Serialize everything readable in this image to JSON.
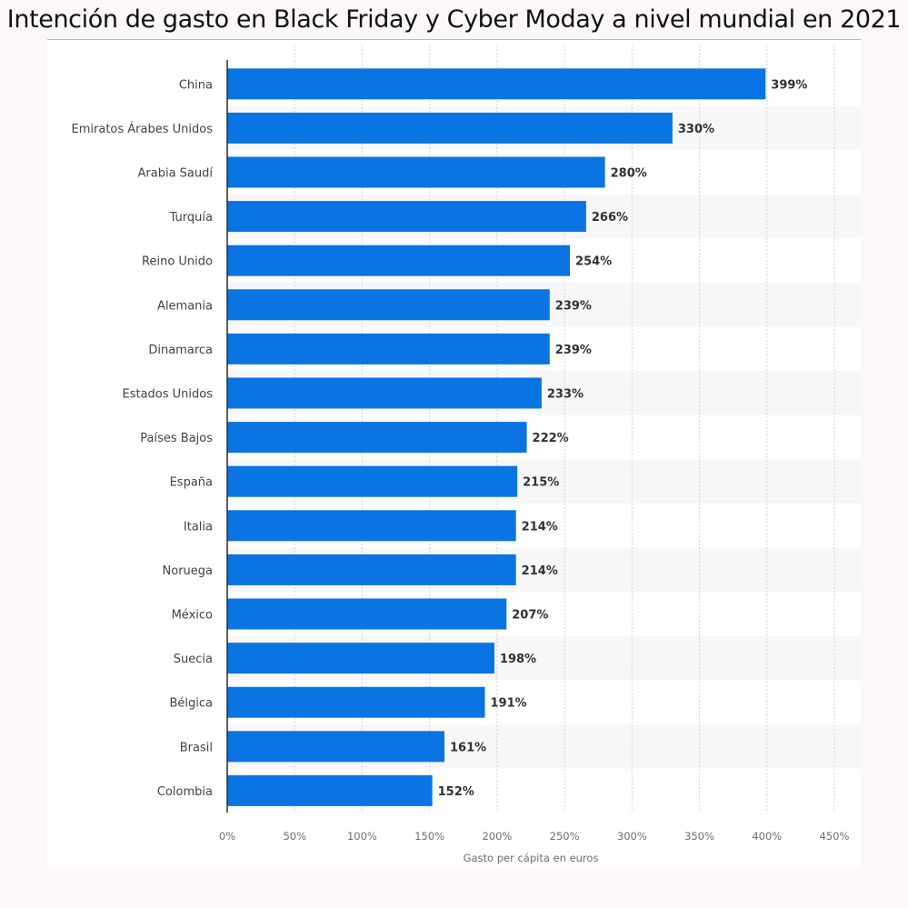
{
  "title": "Intención de gasto en Black Friday y Cyber Moday a nivel mundial en 2021",
  "colors": {
    "bar": "#0a74e2",
    "stripe": "#f7f7f7",
    "grid": "#d2d2d2",
    "axis": "#2b2b2b"
  },
  "chart_data": {
    "type": "bar",
    "orientation": "horizontal",
    "title": "Intención de gasto en Black Friday y Cyber Moday a nivel mundial en 2021",
    "xlabel": "Gasto per cápita en euros",
    "ylabel": "",
    "categories": [
      "China",
      "Emiratos Árabes Unidos",
      "Arabia Saudí",
      "Turquía",
      "Reino Unido",
      "Alemania",
      "Dinamarca",
      "Estados Unidos",
      "Países Bajos",
      "España",
      "Italia",
      "Noruega",
      "México",
      "Suecia",
      "Bélgica",
      "Brasil",
      "Colombia"
    ],
    "values": [
      399,
      330,
      280,
      266,
      254,
      239,
      239,
      233,
      222,
      215,
      214,
      214,
      207,
      198,
      191,
      161,
      152
    ],
    "value_labels": [
      "399%",
      "330%",
      "280%",
      "266%",
      "254%",
      "239%",
      "239%",
      "233%",
      "222%",
      "215%",
      "214%",
      "214%",
      "207%",
      "198%",
      "191%",
      "161%",
      "152%"
    ],
    "xlim": [
      0,
      450
    ],
    "xticks": [
      0,
      50,
      100,
      150,
      200,
      250,
      300,
      350,
      400,
      450
    ],
    "xtick_labels": [
      "0%",
      "50%",
      "100%",
      "150%",
      "200%",
      "250%",
      "300%",
      "350%",
      "400%",
      "450%"
    ],
    "grid": true,
    "legend": "none"
  }
}
